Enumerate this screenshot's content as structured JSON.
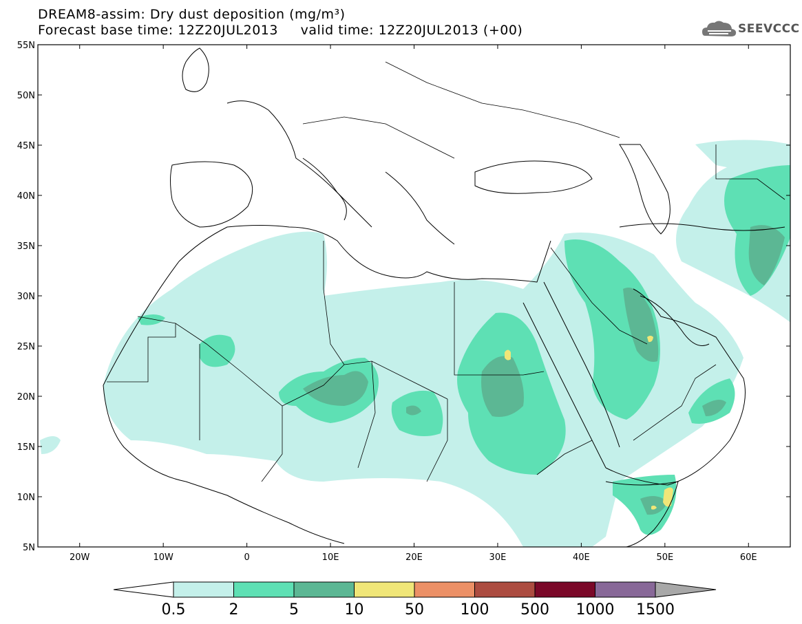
{
  "header": {
    "title_line1": "DREAM8-assim: Dry dust deposition (mg/m³)",
    "title_line2": "Forecast base time: 12Z20JUL2013     valid time: 12Z20JUL2013 (+00)",
    "logo_text": "SEEVCCC"
  },
  "map": {
    "lon_range": [
      -25,
      65
    ],
    "lat_range": [
      5,
      55
    ],
    "lon_ticks": [
      "20W",
      "10W",
      "0",
      "10E",
      "20E",
      "30E",
      "40E",
      "50E",
      "60E"
    ],
    "lat_ticks": [
      "55N",
      "50N",
      "45N",
      "40N",
      "35N",
      "30N",
      "25N",
      "20N",
      "15N",
      "10N",
      "5N"
    ]
  },
  "colorbar": {
    "labels": [
      "0.5",
      "2",
      "5",
      "10",
      "50",
      "100",
      "500",
      "1000",
      "1500"
    ],
    "colors": [
      "#c4f0ea",
      "#5ee0b4",
      "#5cb794",
      "#f0e678",
      "#ec9066",
      "#ac4c40",
      "#7a0828",
      "#886898",
      "#a8a8a8"
    ]
  },
  "colors": {
    "level1": "#c4f0ea",
    "level2": "#5ee0b4",
    "level3": "#5cb794",
    "level4": "#f0e678"
  }
}
